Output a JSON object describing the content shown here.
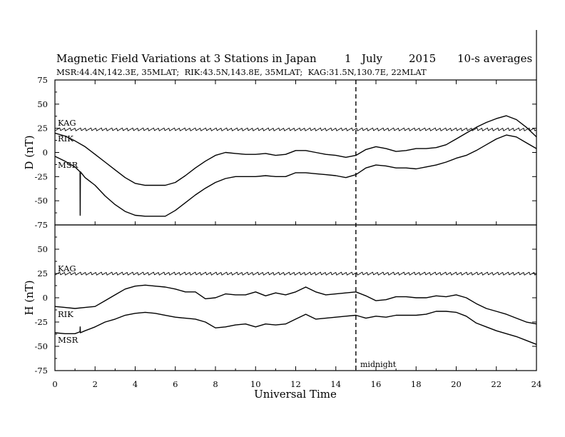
{
  "chart_data": {
    "type": "line",
    "title": "Magnetic Field Variations at 3 Stations in Japan",
    "date_day": "1",
    "date_month": "July",
    "date_year": "2015",
    "averaging": "10-s averages",
    "stations_line": "MSR:44.4N,142.3E, 35MLAT;  RIK:43.5N,143.8E, 35MLAT;  KAG:31.5N,130.7E, 22MLAT",
    "xlabel": "Universal Time",
    "xlim": [
      0,
      24
    ],
    "xticks": [
      "0",
      "2",
      "4",
      "6",
      "8",
      "10",
      "12",
      "14",
      "16",
      "18",
      "20",
      "22",
      "24"
    ],
    "midnight_marker": {
      "x": 15,
      "label": "midnight"
    },
    "panels": [
      {
        "ylabel": "D (nT)",
        "ylim": [
          -75,
          75
        ],
        "yticks": [
          "75",
          "50",
          "25",
          "0",
          "-25",
          "-50",
          "-75"
        ],
        "series": [
          {
            "name": "KAG",
            "x": [
              0,
              2,
              4,
              6,
              8,
              10,
              12,
              14,
              16,
              18,
              20,
              22,
              24
            ],
            "y": [
              24,
              24,
              24,
              24,
              24,
              24,
              24,
              24,
              24,
              24,
              24,
              24,
              24
            ]
          },
          {
            "name": "RIK",
            "x": [
              0,
              0.5,
              1,
              1.5,
              2,
              2.5,
              3,
              3.5,
              4,
              4.5,
              5,
              5.5,
              6,
              6.5,
              7,
              7.5,
              8,
              8.5,
              9,
              9.5,
              10,
              10.5,
              11,
              11.5,
              12,
              12.5,
              13,
              13.5,
              14,
              14.5,
              15,
              15.5,
              16,
              16.5,
              17,
              17.5,
              18,
              18.5,
              19,
              19.5,
              20,
              20.5,
              21,
              21.5,
              22,
              22.5,
              23,
              23.5,
              24
            ],
            "y": [
              20,
              17,
              12,
              6,
              -2,
              -10,
              -18,
              -26,
              -32,
              -34,
              -34,
              -34,
              -31,
              -24,
              -16,
              -9,
              -3,
              0,
              -1,
              -2,
              -2,
              -1,
              -3,
              -2,
              2,
              2,
              0,
              -2,
              -3,
              -5,
              -3,
              3,
              6,
              4,
              1,
              2,
              4,
              4,
              5,
              8,
              14,
              20,
              26,
              31,
              35,
              38,
              34,
              26,
              16
            ]
          },
          {
            "name": "MSR",
            "x": [
              0,
              0.5,
              1,
              1.25,
              1.26,
              1.27,
              1.5,
              2,
              2.5,
              3,
              3.5,
              4,
              4.5,
              5,
              5.5,
              6,
              6.5,
              7,
              7.5,
              8,
              8.5,
              9,
              9.5,
              10,
              10.5,
              11,
              11.5,
              12,
              12.5,
              13,
              13.5,
              14,
              14.5,
              15,
              15.5,
              16,
              16.5,
              17,
              17.5,
              18,
              18.5,
              19,
              19.5,
              20,
              20.5,
              21,
              21.5,
              22,
              22.5,
              23,
              23.5,
              24
            ],
            "y": [
              -4,
              -9,
              -15,
              -20,
              -65,
              -20,
              -26,
              -34,
              -45,
              -54,
              -61,
              -65,
              -66,
              -66,
              -66,
              -60,
              -52,
              -44,
              -37,
              -31,
              -27,
              -25,
              -25,
              -25,
              -24,
              -25,
              -25,
              -21,
              -21,
              -22,
              -23,
              -24,
              -26,
              -23,
              -16,
              -13,
              -14,
              -16,
              -16,
              -17,
              -15,
              -13,
              -10,
              -6,
              -3,
              2,
              8,
              14,
              18,
              16,
              10,
              4
            ]
          }
        ]
      },
      {
        "ylabel": "H (nT)",
        "ylim": [
          -75,
          75
        ],
        "yticks": [
          "75",
          "50",
          "25",
          "0",
          "-25",
          "-50",
          "-75"
        ],
        "series": [
          {
            "name": "KAG",
            "x": [
              0,
              2,
              4,
              6,
              8,
              10,
              12,
              14,
              16,
              18,
              20,
              22,
              24
            ],
            "y": [
              25,
              25,
              25,
              25,
              25,
              25,
              25,
              25,
              25,
              25,
              25,
              25,
              25
            ]
          },
          {
            "name": "RIK",
            "x": [
              0,
              0.5,
              1,
              1.5,
              2,
              2.5,
              3,
              3.5,
              4,
              4.5,
              5,
              5.5,
              6,
              6.5,
              7,
              7.5,
              8,
              8.5,
              9,
              9.5,
              10,
              10.5,
              11,
              11.5,
              12,
              12.5,
              13,
              13.5,
              14,
              14.5,
              15,
              15.5,
              16,
              16.5,
              17,
              17.5,
              18,
              18.5,
              19,
              19.5,
              20,
              20.5,
              21,
              21.5,
              22,
              22.5,
              23,
              23.5,
              24
            ],
            "y": [
              -9,
              -10,
              -11,
              -10,
              -9,
              -3,
              3,
              9,
              12,
              13,
              12,
              11,
              9,
              6,
              6,
              -1,
              0,
              4,
              3,
              3,
              6,
              2,
              5,
              3,
              6,
              11,
              6,
              3,
              4,
              5,
              6,
              2,
              -3,
              -2,
              1,
              1,
              0,
              0,
              2,
              1,
              3,
              0,
              -6,
              -11,
              -14,
              -17,
              -21,
              -25,
              -27
            ]
          },
          {
            "name": "MSR",
            "x": [
              0,
              0.5,
              1,
              1.25,
              1.26,
              1.27,
              1.5,
              2,
              2.5,
              3,
              3.5,
              4,
              4.5,
              5,
              5.5,
              6,
              6.5,
              7,
              7.5,
              8,
              8.5,
              9,
              9.5,
              10,
              10.5,
              11,
              11.5,
              12,
              12.5,
              13,
              13.5,
              14,
              14.5,
              15,
              15.5,
              16,
              16.5,
              17,
              17.5,
              18,
              18.5,
              19,
              19.5,
              20,
              20.5,
              21,
              21.5,
              22,
              22.5,
              23,
              23.5,
              24
            ],
            "y": [
              -36,
              -37,
              -37,
              -35,
              -30,
              -36,
              -34,
              -30,
              -25,
              -22,
              -18,
              -16,
              -15,
              -16,
              -18,
              -20,
              -21,
              -22,
              -25,
              -31,
              -30,
              -28,
              -27,
              -30,
              -27,
              -28,
              -27,
              -22,
              -17,
              -22,
              -21,
              -20,
              -19,
              -18,
              -21,
              -19,
              -20,
              -18,
              -18,
              -18,
              -17,
              -14,
              -14,
              -15,
              -19,
              -26,
              -30,
              -34,
              -37,
              -40,
              -44,
              -48
            ]
          }
        ]
      }
    ]
  }
}
